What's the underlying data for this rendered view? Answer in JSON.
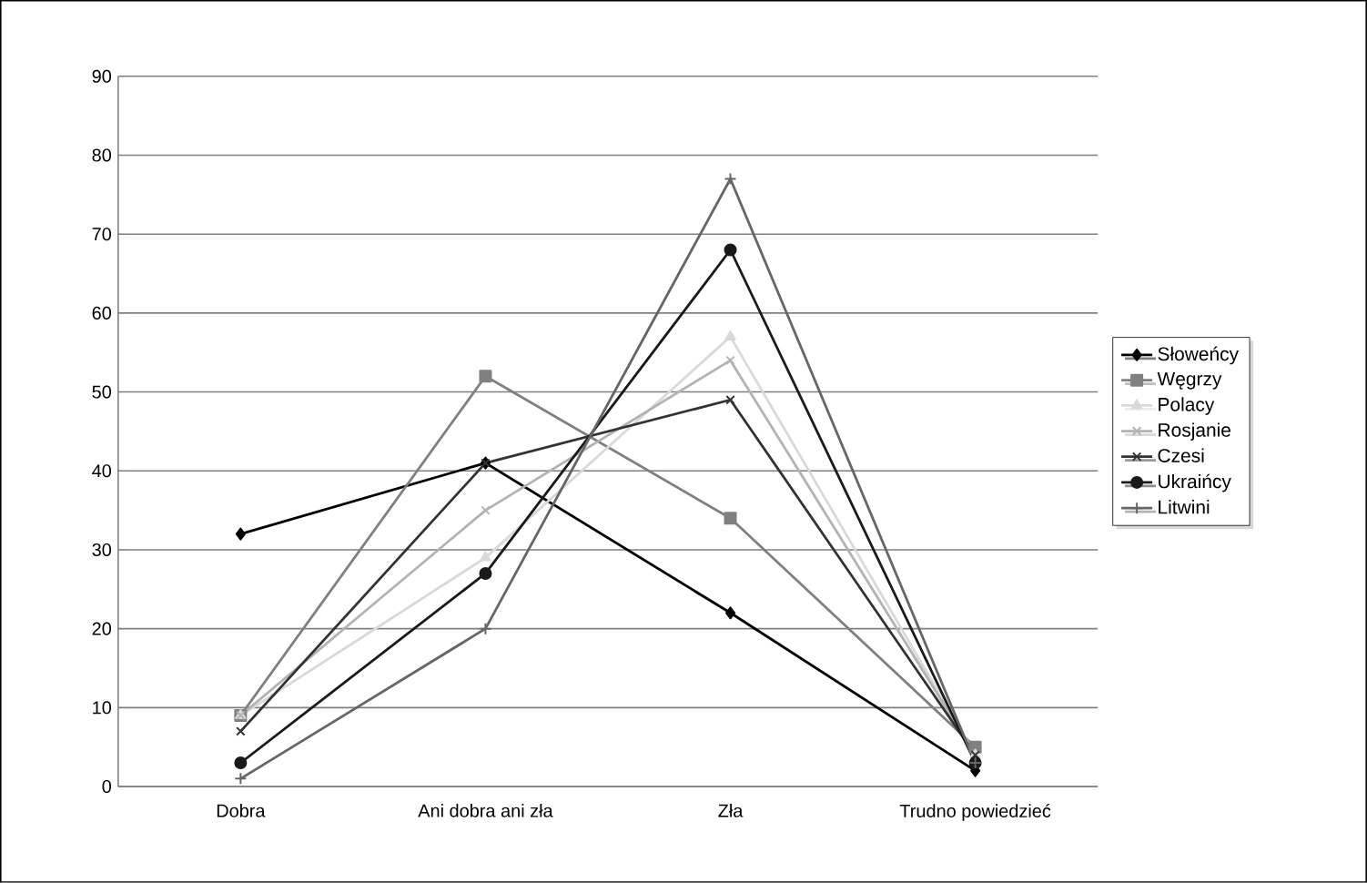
{
  "chart_data": {
    "type": "line",
    "categories": [
      "Dobra",
      "Ani dobra ani zła",
      "Zła",
      "Trudno powiedzieć"
    ],
    "ylim": [
      0,
      90
    ],
    "yticks": [
      0,
      10,
      20,
      30,
      40,
      50,
      60,
      70,
      80,
      90
    ],
    "grid": "y",
    "legend": "right",
    "series": [
      {
        "name": "Słoweńcy",
        "color": "#000000",
        "marker": "diamond",
        "values": [
          32,
          41,
          22,
          2
        ]
      },
      {
        "name": "Węgrzy",
        "color": "#808080",
        "marker": "square",
        "values": [
          9,
          52,
          34,
          5
        ]
      },
      {
        "name": "Polacy",
        "color": "#d9d9d9",
        "marker": "triangle",
        "values": [
          9,
          29,
          57,
          4
        ]
      },
      {
        "name": "Rosjanie",
        "color": "#b3b3b3",
        "marker": "cross",
        "values": [
          9,
          35,
          54,
          4
        ]
      },
      {
        "name": "Czesi",
        "color": "#333333",
        "marker": "cross",
        "values": [
          7,
          41,
          49,
          4
        ]
      },
      {
        "name": "Ukraińcy",
        "color": "#1a1a1a",
        "marker": "circle",
        "values": [
          3,
          27,
          68,
          3
        ]
      },
      {
        "name": "Litwini",
        "color": "#666666",
        "marker": "plus",
        "values": [
          1,
          20,
          77,
          3
        ]
      }
    ]
  }
}
